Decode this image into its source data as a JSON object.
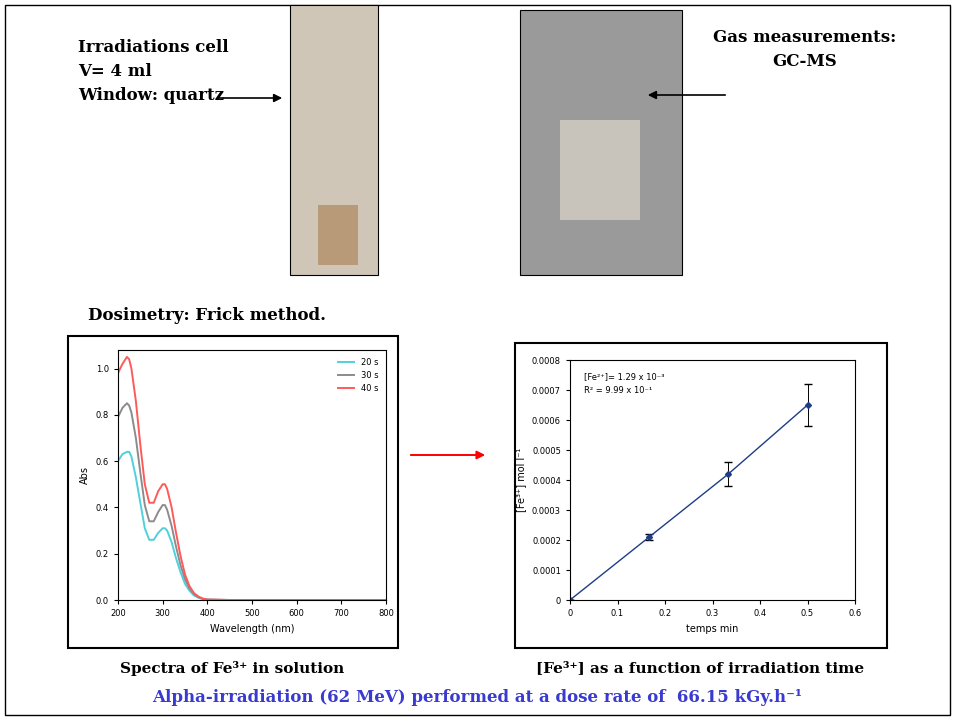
{
  "slide": {
    "cell": [
      "Irradiations cell",
      "V= 4 ml",
      "Window: quartz"
    ],
    "gas": [
      "Gas measurements:",
      "GC-MS"
    ],
    "dosimetry": "Dosimetry: Frick method.",
    "captions": [
      "Spectra of Fe³⁺ in solution",
      "[Fe³⁺] as a function of irradiation time"
    ],
    "footer": "Alpha-irradiation (62 MeV) performed at a dose rate of  66.15 kGy.h⁻¹"
  },
  "chart_data": [
    {
      "type": "line",
      "x": [
        200,
        210,
        220,
        225,
        230,
        240,
        250,
        260,
        270,
        280,
        290,
        300,
        305,
        310,
        320,
        330,
        340,
        350,
        360,
        370,
        380,
        390,
        400,
        450,
        500,
        550,
        600,
        650,
        700,
        750,
        800
      ],
      "series": [
        {
          "name": "20 s",
          "color": "#4fd1dc",
          "values": [
            0.6,
            0.63,
            0.64,
            0.64,
            0.62,
            0.53,
            0.42,
            0.31,
            0.26,
            0.26,
            0.29,
            0.31,
            0.31,
            0.3,
            0.25,
            0.18,
            0.12,
            0.07,
            0.04,
            0.02,
            0.01,
            0.004,
            0.001,
            0,
            0,
            0,
            0,
            0,
            0,
            0,
            0
          ]
        },
        {
          "name": "30 s",
          "color": "#8c8c8c",
          "values": [
            0.79,
            0.83,
            0.85,
            0.84,
            0.81,
            0.7,
            0.55,
            0.41,
            0.34,
            0.34,
            0.38,
            0.41,
            0.41,
            0.39,
            0.32,
            0.23,
            0.15,
            0.09,
            0.05,
            0.025,
            0.012,
            0.005,
            0.002,
            0,
            0,
            0,
            0,
            0,
            0,
            0,
            0
          ]
        },
        {
          "name": "40 s",
          "color": "#ff5a5a",
          "values": [
            0.98,
            1.02,
            1.05,
            1.04,
            1.0,
            0.86,
            0.67,
            0.5,
            0.42,
            0.42,
            0.47,
            0.5,
            0.5,
            0.48,
            0.4,
            0.29,
            0.19,
            0.11,
            0.06,
            0.03,
            0.015,
            0.006,
            0.002,
            0,
            0,
            0,
            0,
            0,
            0,
            0,
            0
          ]
        }
      ],
      "x_label": "Wavelength (nm)",
      "y_label": "Abs",
      "xlim": [
        200,
        800
      ],
      "xticks": [
        200,
        300,
        400,
        500,
        600,
        700,
        800
      ],
      "ylim": [
        0,
        1.08
      ],
      "yticks": [
        {
          "value": 0,
          "label": "0.0"
        },
        0.2,
        0.4,
        0.6,
        0.8,
        {
          "value": 1.0,
          "label": "1.0"
        }
      ],
      "legend": "upper right",
      "grid": false
    },
    {
      "type": "line",
      "x": [
        0,
        0.1667,
        0.3333,
        0.5
      ],
      "values": [
        0,
        0.00021,
        0.00042,
        0.00065
      ],
      "errors": [
        0,
        1e-05,
        4e-05,
        7e-05
      ],
      "color": "#1f3c88",
      "marker": "diamond",
      "line_style": "solid",
      "x_label": "temps min",
      "y_label": "[Fe³⁺] mol l⁻¹",
      "annotations": [
        "[Fe²⁺]= 1.29 x 10⁻³",
        "R² = 9.99 x 10⁻¹"
      ],
      "xlim": [
        0,
        0.6
      ],
      "xticks": [
        0,
        0.1,
        0.2,
        0.3,
        0.4,
        0.5,
        0.6
      ],
      "ylim": [
        0,
        0.0008
      ],
      "yticks": [
        0,
        0.0001,
        0.0002,
        0.0003,
        0.0004,
        0.0005,
        0.0006,
        0.0007,
        0.0008
      ],
      "grid": false
    }
  ]
}
